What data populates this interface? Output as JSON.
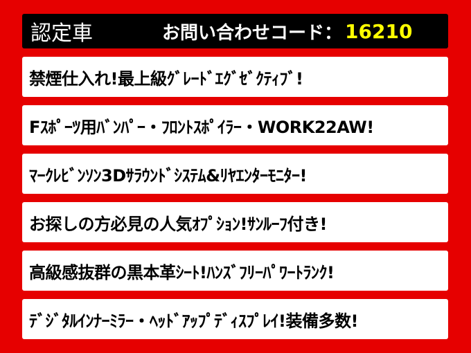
{
  "header": {
    "certified_label": "認定車",
    "inquiry_label": "お問い合わせコード：",
    "inquiry_code": "16210"
  },
  "features": [
    "禁煙仕入れ!最上級ｸﾞﾚｰﾄﾞｴｸﾞｾﾞｸﾃｨﾌﾞ!",
    "Fｽﾎﾟｰﾂ用ﾊﾞﾝﾊﾟｰ・ﾌﾛﾝﾄｽﾎﾟｲﾗｰ・WORK22AW!",
    "ﾏｰｸﾚﾋﾞﾝｿﾝ3Dｻﾗｳﾝﾄﾞｼｽﾃﾑ&ﾘﾔｴﾝﾀｰﾓﾆﾀｰ!",
    "お探しの方必見の人気ｵﾌﾟｼｮﾝ!ｻﾝﾙｰﾌ付き!",
    "高級感抜群の黒本革ｼｰﾄ!ﾊﾝｽﾞﾌﾘｰﾊﾟﾜｰﾄﾗﾝｸ!",
    "ﾃﾞｼﾞﾀﾙｲﾝﾅｰﾐﾗｰ・ﾍｯﾄﾞｱｯﾌﾟﾃﾞｨｽﾌﾟﾚｲ!装備多数!"
  ],
  "colors": {
    "background": "#e60000",
    "header": "#000000",
    "code": "#ffff00"
  }
}
